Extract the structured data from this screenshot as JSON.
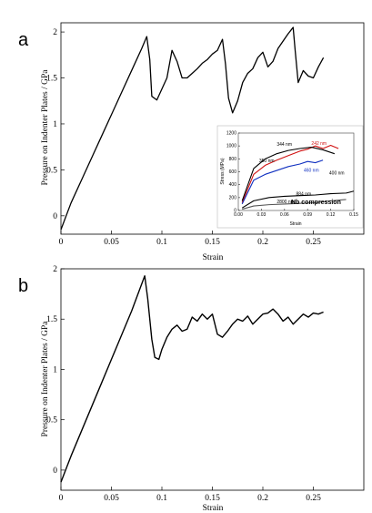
{
  "chart_data": [
    {
      "panel_label": "a",
      "type": "line",
      "xlabel": "Strain",
      "ylabel": "Pressure on Indenter Plates / GPa",
      "xlim": [
        0,
        0.3
      ],
      "ylim": [
        -0.2,
        2.1
      ],
      "xticks": [
        "0",
        "0.05",
        "0.1",
        "0.15",
        "0.2",
        "0.25"
      ],
      "xtick_values": [
        0,
        0.05,
        0.1,
        0.15,
        0.2,
        0.25
      ],
      "yticks": [
        "0",
        "0.5",
        "1",
        "1.5",
        "2"
      ],
      "ytick_values": [
        0,
        0.5,
        1,
        1.5,
        2
      ],
      "grid": false,
      "series": [
        {
          "color": "#000000",
          "x": [
            0,
            0.01,
            0.02,
            0.03,
            0.04,
            0.05,
            0.06,
            0.07,
            0.08,
            0.085,
            0.088,
            0.09,
            0.095,
            0.1,
            0.105,
            0.11,
            0.115,
            0.12,
            0.125,
            0.13,
            0.135,
            0.14,
            0.145,
            0.15,
            0.155,
            0.16,
            0.163,
            0.166,
            0.17,
            0.175,
            0.18,
            0.185,
            0.19,
            0.195,
            0.2,
            0.205,
            0.21,
            0.215,
            0.22,
            0.225,
            0.23,
            0.232,
            0.235,
            0.24,
            0.245,
            0.25,
            0.255,
            0.26
          ],
          "y": [
            -0.15,
            0.14,
            0.38,
            0.62,
            0.86,
            1.1,
            1.34,
            1.58,
            1.82,
            1.95,
            1.7,
            1.3,
            1.26,
            1.38,
            1.5,
            1.8,
            1.68,
            1.5,
            1.5,
            1.55,
            1.6,
            1.66,
            1.7,
            1.76,
            1.8,
            1.92,
            1.65,
            1.28,
            1.12,
            1.25,
            1.45,
            1.55,
            1.6,
            1.72,
            1.78,
            1.62,
            1.68,
            1.82,
            1.9,
            1.98,
            2.05,
            1.8,
            1.45,
            1.58,
            1.52,
            1.5,
            1.62,
            1.72
          ]
        }
      ],
      "inset": {
        "title": "Nb compression",
        "xlabel": "Strain",
        "ylabel": "Stress (MPa)",
        "xlim": [
          0,
          0.15
        ],
        "ylim": [
          0,
          1200
        ],
        "xticks": [
          "0.00",
          "0.03",
          "0.06",
          "0.09",
          "0.12",
          "0.15"
        ],
        "xtick_values": [
          0,
          0.03,
          0.06,
          0.09,
          0.12,
          0.15
        ],
        "yticks": [
          "0",
          "200",
          "400",
          "600",
          "800",
          "1000",
          "1200"
        ],
        "ytick_values": [
          0,
          200,
          400,
          600,
          800,
          1000,
          1200
        ],
        "annotations": [
          {
            "text": "242 nm",
            "x": 0.095,
            "y": 1020,
            "color": "#d01010"
          },
          {
            "text": "344 nm",
            "x": 0.05,
            "y": 1000,
            "color": "#000000"
          },
          {
            "text": "460 nm",
            "x": 0.085,
            "y": 600,
            "color": "#1030c0"
          },
          {
            "text": "400 nm",
            "x": 0.118,
            "y": 560,
            "color": "#000000"
          },
          {
            "text": "350 nm",
            "x": 0.027,
            "y": 750,
            "color": "#000000"
          },
          {
            "text": "884 nm",
            "x": 0.075,
            "y": 235,
            "color": "#000000"
          },
          {
            "text": "2800 nm",
            "x": 0.05,
            "y": 115,
            "color": "#000000"
          }
        ],
        "series": [
          {
            "color": "#d01010",
            "x": [
              0.005,
              0.02,
              0.035,
              0.05,
              0.065,
              0.08,
              0.09,
              0.1,
              0.11,
              0.12,
              0.13
            ],
            "y": [
              120,
              560,
              700,
              780,
              850,
              920,
              950,
              1000,
              960,
              1010,
              960
            ]
          },
          {
            "color": "#000000",
            "x": [
              0.005,
              0.02,
              0.035,
              0.05,
              0.065,
              0.08,
              0.095,
              0.11,
              0.125
            ],
            "y": [
              150,
              650,
              800,
              880,
              930,
              960,
              980,
              940,
              880
            ]
          },
          {
            "color": "#1030c0",
            "x": [
              0.005,
              0.02,
              0.035,
              0.05,
              0.065,
              0.08,
              0.09,
              0.1,
              0.11
            ],
            "y": [
              100,
              470,
              560,
              620,
              680,
              720,
              760,
              740,
              780
            ]
          },
          {
            "color": "#000000",
            "x": [
              0.005,
              0.02,
              0.04,
              0.06,
              0.08,
              0.1,
              0.12,
              0.14,
              0.15
            ],
            "y": [
              40,
              150,
              200,
              220,
              230,
              240,
              260,
              270,
              300
            ]
          },
          {
            "color": "#555555",
            "x": [
              0.005,
              0.02,
              0.04,
              0.06,
              0.08,
              0.1,
              0.12,
              0.14
            ],
            "y": [
              20,
              70,
              90,
              100,
              110,
              120,
              150,
              170
            ]
          }
        ]
      }
    },
    {
      "panel_label": "b",
      "type": "line",
      "xlabel": "Strain",
      "ylabel": "Pressure on Indenter Plates / GPa",
      "xlim": [
        0,
        0.3
      ],
      "ylim": [
        -0.2,
        2.0
      ],
      "xticks": [
        "0",
        "0.05",
        "0.1",
        "0.15",
        "0.2",
        "0.25"
      ],
      "xtick_values": [
        0,
        0.05,
        0.1,
        0.15,
        0.2,
        0.25
      ],
      "yticks": [
        "0",
        "0.5",
        "1",
        "1.5",
        "2"
      ],
      "ytick_values": [
        0,
        0.5,
        1,
        1.5,
        2
      ],
      "grid": false,
      "series": [
        {
          "color": "#000000",
          "x": [
            0,
            0.01,
            0.02,
            0.03,
            0.04,
            0.05,
            0.06,
            0.07,
            0.08,
            0.083,
            0.086,
            0.09,
            0.093,
            0.097,
            0.1,
            0.105,
            0.11,
            0.115,
            0.12,
            0.125,
            0.13,
            0.135,
            0.14,
            0.145,
            0.15,
            0.155,
            0.16,
            0.165,
            0.17,
            0.175,
            0.18,
            0.185,
            0.19,
            0.195,
            0.2,
            0.205,
            0.21,
            0.215,
            0.22,
            0.225,
            0.23,
            0.235,
            0.24,
            0.245,
            0.25,
            0.255,
            0.26
          ],
          "y": [
            -0.12,
            0.14,
            0.38,
            0.62,
            0.86,
            1.1,
            1.34,
            1.58,
            1.85,
            1.93,
            1.7,
            1.3,
            1.12,
            1.1,
            1.2,
            1.32,
            1.4,
            1.44,
            1.38,
            1.4,
            1.52,
            1.48,
            1.55,
            1.5,
            1.55,
            1.35,
            1.32,
            1.38,
            1.45,
            1.5,
            1.48,
            1.53,
            1.45,
            1.5,
            1.55,
            1.56,
            1.6,
            1.55,
            1.48,
            1.52,
            1.45,
            1.5,
            1.55,
            1.52,
            1.56,
            1.55,
            1.57
          ]
        }
      ]
    }
  ]
}
